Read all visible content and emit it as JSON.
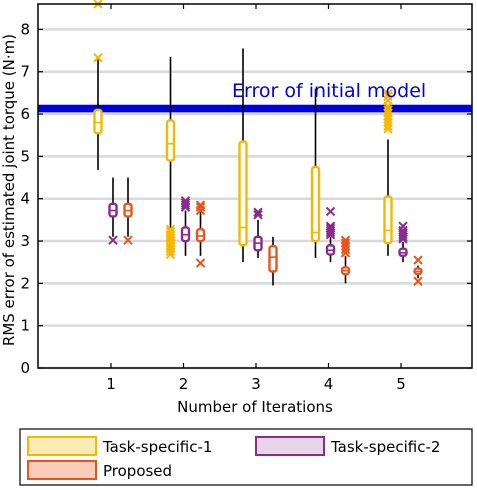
{
  "chart_data": {
    "type": "box",
    "title": "",
    "xlabel": "Number of Iterations",
    "ylabel": "RMS error of estimated joint torque (N·m)",
    "categories": [
      "1",
      "2",
      "3",
      "4",
      "5"
    ],
    "ylim": [
      0,
      8.6
    ],
    "yticks": [
      0,
      1,
      2,
      3,
      4,
      5,
      6,
      7,
      8
    ],
    "grid": true,
    "legend_position": "bottom",
    "reference_line": {
      "label": "Error of initial model",
      "value": 6.13,
      "band": [
        6.04,
        6.22
      ],
      "color": "#0000dd"
    },
    "series": [
      {
        "name": "Task-specific-1",
        "color": "#f5b800",
        "boxes": [
          {
            "x": "1",
            "whisker_low": 4.68,
            "q1": 5.55,
            "median": 5.8,
            "q3": 6.1,
            "whisker_high": 7.3,
            "outliers": [
              7.33,
              8.6
            ]
          },
          {
            "x": "2",
            "whisker_low": 2.9,
            "q1": 4.9,
            "median": 5.3,
            "q3": 5.85,
            "whisker_high": 7.35,
            "outliers": [
              2.68,
              2.75,
              2.82,
              2.88,
              2.95,
              3.02,
              3.08,
              3.15,
              3.22,
              3.28
            ]
          },
          {
            "x": "3",
            "whisker_low": 2.5,
            "q1": 2.9,
            "median": 3.32,
            "q3": 5.35,
            "whisker_high": 7.55,
            "outliers": []
          },
          {
            "x": "4",
            "whisker_low": 2.6,
            "q1": 3.0,
            "median": 3.2,
            "q3": 4.75,
            "whisker_high": 6.6,
            "outliers": []
          },
          {
            "x": "5",
            "whisker_low": 2.65,
            "q1": 2.95,
            "median": 3.25,
            "q3": 4.05,
            "whisker_high": 5.4,
            "outliers": [
              5.65,
              5.72,
              5.8,
              5.88,
              5.95,
              6.02,
              6.1,
              6.18,
              6.32,
              6.42,
              6.48
            ]
          }
        ]
      },
      {
        "name": "Task-specific-2",
        "color": "#8b2a8f",
        "boxes": [
          {
            "x": "1",
            "whisker_low": 3.1,
            "q1": 3.58,
            "median": 3.72,
            "q3": 3.88,
            "whisker_high": 4.5,
            "outliers": [
              3.02
            ]
          },
          {
            "x": "2",
            "whisker_low": 2.65,
            "q1": 3.0,
            "median": 3.15,
            "q3": 3.32,
            "whisker_high": 3.72,
            "outliers": [
              3.8,
              3.85,
              3.9,
              3.95
            ]
          },
          {
            "x": "3",
            "whisker_low": 2.6,
            "q1": 2.78,
            "median": 2.95,
            "q3": 3.1,
            "whisker_high": 3.5,
            "outliers": [
              3.62,
              3.68
            ]
          },
          {
            "x": "4",
            "whisker_low": 2.5,
            "q1": 2.68,
            "median": 2.78,
            "q3": 2.9,
            "whisker_high": 3.1,
            "outliers": [
              3.15,
              3.2,
              3.25,
              3.3,
              3.35,
              3.7
            ]
          },
          {
            "x": "5",
            "whisker_low": 2.5,
            "q1": 2.65,
            "median": 2.72,
            "q3": 2.82,
            "whisker_high": 2.98,
            "outliers": [
              3.05,
              3.1,
              3.15,
              3.2,
              3.25,
              3.35
            ]
          }
        ]
      },
      {
        "name": "Proposed",
        "color": "#e8541b",
        "boxes": [
          {
            "x": "1",
            "whisker_low": 3.1,
            "q1": 3.58,
            "median": 3.72,
            "q3": 3.88,
            "whisker_high": 4.5,
            "outliers": [
              3.02
            ]
          },
          {
            "x": "2",
            "whisker_low": 2.65,
            "q1": 3.0,
            "median": 3.12,
            "q3": 3.28,
            "whisker_high": 3.7,
            "outliers": [
              2.48,
              3.72,
              3.8,
              3.85
            ]
          },
          {
            "x": "3",
            "whisker_low": 1.95,
            "q1": 2.28,
            "median": 2.62,
            "q3": 2.88,
            "whisker_high": 3.1,
            "outliers": []
          },
          {
            "x": "4",
            "whisker_low": 2.0,
            "q1": 2.22,
            "median": 2.3,
            "q3": 2.38,
            "whisker_high": 2.65,
            "outliers": [
              2.72,
              2.8,
              2.88,
              2.95,
              3.02
            ]
          },
          {
            "x": "5",
            "whisker_low": 2.12,
            "q1": 2.22,
            "median": 2.28,
            "q3": 2.35,
            "whisker_high": 2.42,
            "outliers": [
              2.05,
              2.55
            ]
          }
        ]
      }
    ]
  }
}
